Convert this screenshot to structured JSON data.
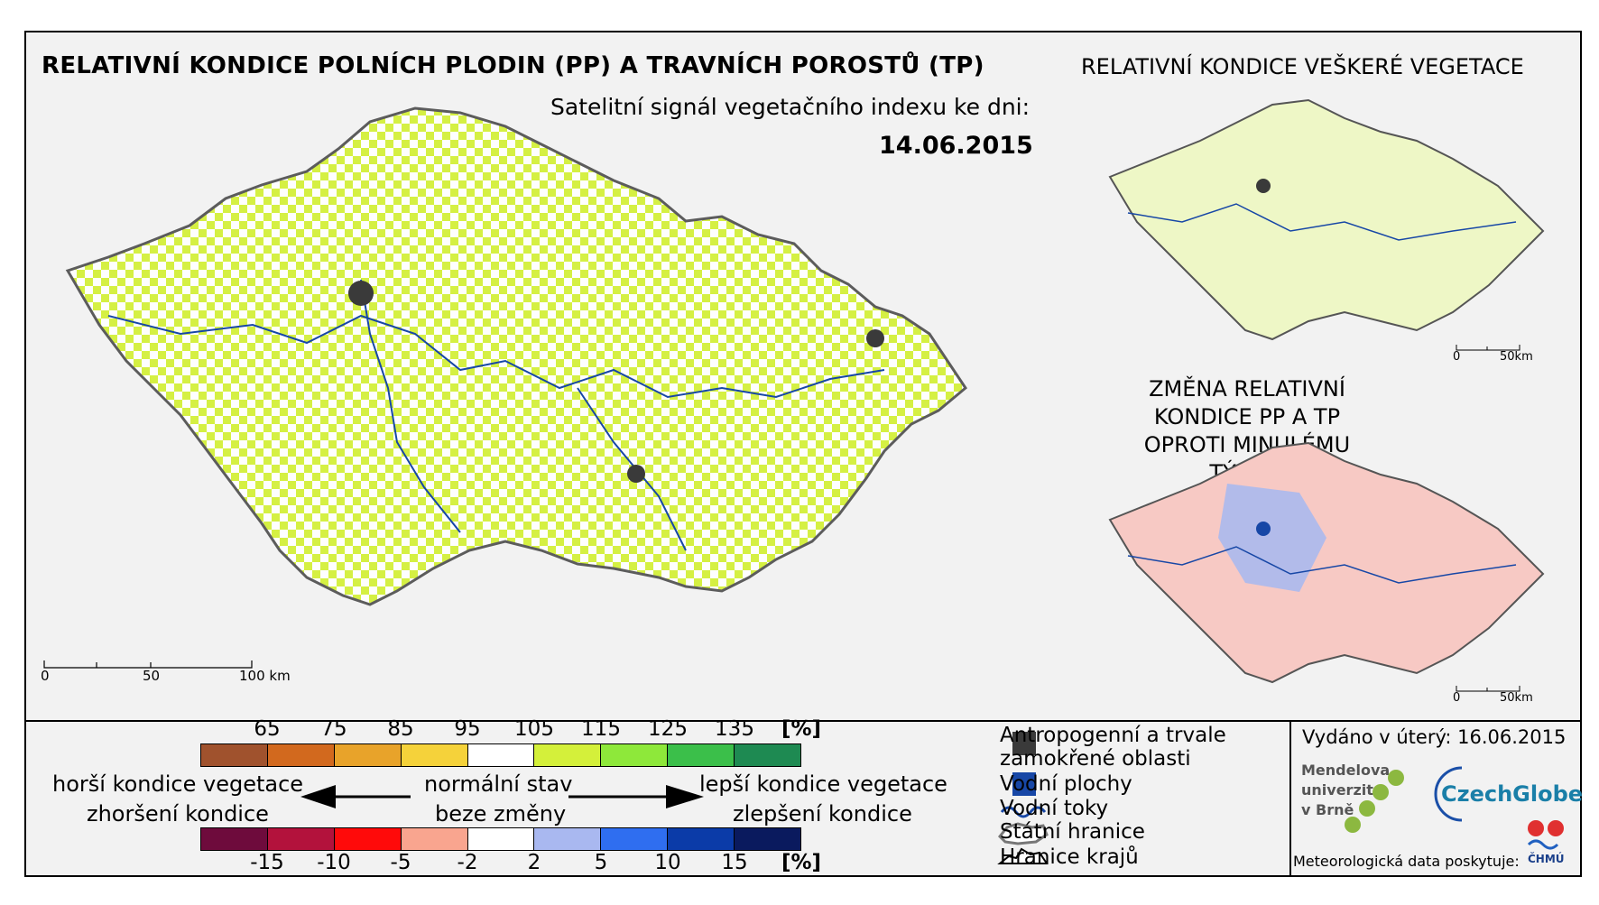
{
  "header": {
    "title": "RELATIVNÍ KONDICE POLNÍCH PLODIN (PP) A TRAVNÍCH POROSTŮ (TP)",
    "subtitle": "Satelitní signál vegetačního indexu ke dni:",
    "date": "14.06.2015"
  },
  "inset_top": {
    "title": "RELATIVNÍ KONDICE VEŠKERÉ VEGETACE",
    "scale": [
      "0",
      "50km"
    ]
  },
  "inset_bottom": {
    "title_line1": "ZMĚNA RELATIVNÍ KONDICE PP A TP",
    "title_line2": "OPROTI MINULÉMU TÝDNU",
    "scale": [
      "0",
      "50km"
    ]
  },
  "main_scale": [
    "0",
    "50",
    "100 km"
  ],
  "legend_condition": {
    "ticks": [
      "65",
      "75",
      "85",
      "95",
      "105",
      "115",
      "125",
      "135"
    ],
    "unit": "[%]",
    "colors": [
      "#a0522d",
      "#d2691e",
      "#e8a32a",
      "#f5d23a",
      "#ffffff",
      "#d4f03a",
      "#8ee83a",
      "#3bbf4a",
      "#1e8a52"
    ]
  },
  "legend_change": {
    "ticks": [
      "-15",
      "-10",
      "-5",
      "-2",
      "2",
      "5",
      "10",
      "15"
    ],
    "unit": "[%]",
    "colors": [
      "#6e0b3c",
      "#b3123c",
      "#ff0a0a",
      "#f9a58f",
      "#ffffff",
      "#a9b8f0",
      "#2f6ef0",
      "#0b3ba8",
      "#0a1a5e"
    ]
  },
  "legend_arrows": {
    "worse1": "horší kondice vegetace",
    "worse2": "zhoršení kondice",
    "normal1": "normální stav",
    "normal2": "beze změny",
    "better1": "lepší kondice vegetace",
    "better2": "zlepšení kondice"
  },
  "legend_symbols": [
    {
      "label": "Antropogenní a trvale\nzamokřené oblasti",
      "icon": "dark-gray-square",
      "color": "#3a3a3a"
    },
    {
      "label": "Vodní plochy",
      "icon": "blue-square",
      "color": "#1747a6"
    },
    {
      "label": "Vodní toky",
      "icon": "wavy-line",
      "color": "#1747a6"
    },
    {
      "label": "Státní hranice",
      "icon": "state-border"
    },
    {
      "label": "Hranice krajů",
      "icon": "region-border"
    }
  ],
  "credits": {
    "issued": "Vydáno v úterý: 16.06.2015",
    "mendel": [
      "Mendelova",
      "univerzita",
      "v Brně"
    ],
    "czechglobe": "CzechGlobe",
    "meteo": "Meteorologická data poskytuje:",
    "chmu": "ČHMÚ"
  }
}
